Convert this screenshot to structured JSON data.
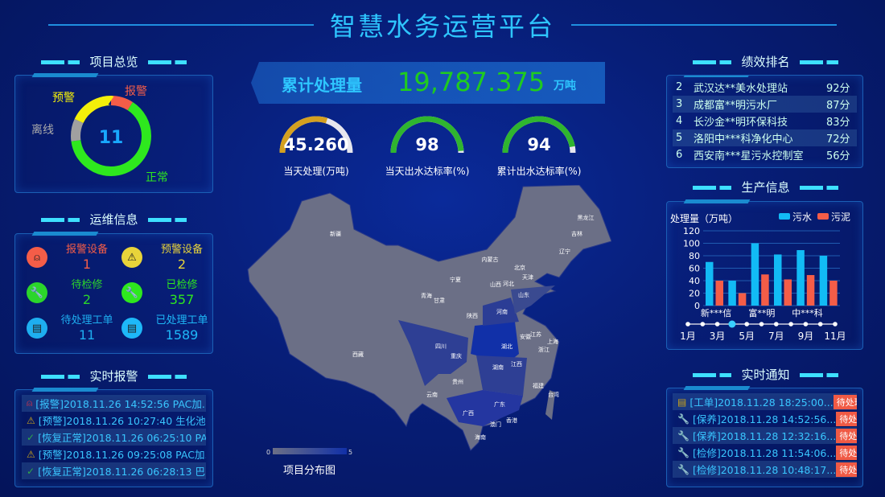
{
  "header": {
    "title": "智慧水务运营平台"
  },
  "overview": {
    "title": "项目总览",
    "total": "11",
    "colors": {
      "报警": "#f45d48",
      "正常": "#2ee81e",
      "离线": "#a0a0a0",
      "预警": "#f3ef0a"
    },
    "segments": [
      {
        "label": "报警",
        "value": 1
      },
      {
        "label": "正常",
        "value": 7
      },
      {
        "label": "离线",
        "value": 1
      },
      {
        "label": "预警",
        "value": 2
      }
    ]
  },
  "ops": {
    "title": "运维信息",
    "items": [
      {
        "label": "报警设备",
        "value": "1",
        "color": "#f45d48",
        "icon": "alarm-light-icon"
      },
      {
        "label": "预警设备",
        "value": "2",
        "color": "#e8d43a",
        "icon": "warning-light-icon"
      },
      {
        "label": "待检修",
        "value": "2",
        "color": "#2bd52b",
        "icon": "wrench-icon"
      },
      {
        "label": "已检修",
        "value": "357",
        "color": "#2ee81e",
        "icon": "wrench-icon"
      },
      {
        "label": "待处理工单",
        "value": "11",
        "color": "#1eaef0",
        "icon": "clipboard-icon"
      },
      {
        "label": "已处理工单",
        "value": "1589",
        "color": "#1eb8f8",
        "icon": "clipboard-icon"
      }
    ]
  },
  "alarms": {
    "title": "实时报警",
    "items": [
      {
        "text": "[报警]2018.11.26 14:52:56 PAC加...",
        "icon": "alarm-light-icon",
        "color": "#d0304a"
      },
      {
        "text": "[预警]2018.11.26 10:27:40 生化池 ...",
        "icon": "warning-light-icon",
        "color": "#c9a21a"
      },
      {
        "text": "[恢复正常]2018.11.26 06:25:10 PA...",
        "icon": "check-circle-icon",
        "color": "#2fa84a"
      },
      {
        "text": "[预警]2018.11.26 09:25:08 PAC加...",
        "icon": "warning-light-icon",
        "color": "#c9a21a"
      },
      {
        "text": "[恢复正常]2018.11.26 06:28:13 巴...",
        "icon": "check-circle-icon",
        "color": "#2fa84a"
      }
    ]
  },
  "total": {
    "label": "累计处理量",
    "value": "19,787.375",
    "unit": "万吨"
  },
  "gauges": [
    {
      "value": "45.260",
      "label": "当天处理(万吨)",
      "fraction": 0.6,
      "color": "#d4a020"
    },
    {
      "value": "98",
      "label": "当天出水达标率(%)",
      "fraction": 0.98,
      "color": "#2fb52f"
    },
    {
      "value": "94",
      "label": "累计出水达标率(%)",
      "fraction": 0.94,
      "color": "#2fb52f"
    }
  ],
  "map": {
    "title": "项目分布图",
    "legend_min": "0",
    "legend_max": "5",
    "provinces": [
      "新疆",
      "西藏",
      "青海",
      "甘肃",
      "宁夏",
      "内蒙古",
      "黑龙江",
      "吉林",
      "辽宁",
      "北京",
      "天津",
      "河北",
      "山西",
      "山东",
      "河南",
      "陕西",
      "四川",
      "重庆",
      "湖北",
      "安徽",
      "江苏",
      "上海",
      "浙江",
      "湖南",
      "江西",
      "贵州",
      "云南",
      "广西",
      "广东",
      "福建",
      "台湾",
      "澳门",
      "香港",
      "海南"
    ]
  },
  "ranking": {
    "title": "绩效排名",
    "items": [
      {
        "rank": "2",
        "name": "武汉达**美水处理站",
        "score": "92分"
      },
      {
        "rank": "3",
        "name": "成都富**明污水厂",
        "score": "87分"
      },
      {
        "rank": "4",
        "name": "长沙金**明环保科技",
        "score": "83分"
      },
      {
        "rank": "5",
        "name": "洛阳中***科净化中心",
        "score": "72分"
      },
      {
        "rank": "6",
        "name": "西安南***星污水控制室",
        "score": "56分"
      }
    ]
  },
  "production": {
    "title": "生产信息",
    "months": [
      "1月",
      "3月",
      "5月",
      "7月",
      "9月",
      "11月"
    ],
    "active_month_index": 3
  },
  "chart_data": {
    "type": "bar",
    "ylabel": "处理量（万吨）",
    "ylim": [
      0,
      120
    ],
    "yticks": [
      0,
      20,
      40,
      60,
      80,
      100,
      120
    ],
    "categories": [
      "新***信",
      "",
      "富**明",
      "",
      "中***科",
      ""
    ],
    "series": [
      {
        "name": "污水",
        "color": "#12bbf5",
        "values": [
          70,
          40,
          100,
          82,
          89,
          80
        ]
      },
      {
        "name": "污泥",
        "color": "#f45d48",
        "values": [
          40,
          20,
          50,
          42,
          49,
          40
        ]
      }
    ],
    "legend": "top-right",
    "grid": true
  },
  "notices": {
    "title": "实时通知",
    "items": [
      {
        "text": "[工单]2018.11.28 18:25:00...",
        "status": "待处理",
        "icon": "clipboard-icon",
        "color": "#c9a21a"
      },
      {
        "text": "[保养]2018.11.28 14:52:56...",
        "status": "待处理",
        "icon": "wrench-icon",
        "color": "#2a6fd0"
      },
      {
        "text": "[保养]2018.11.28 12:32:16...",
        "status": "待处理",
        "icon": "wrench-icon",
        "color": "#2a6fd0"
      },
      {
        "text": "[检修]2018.11.28 11:54:06...",
        "status": "待处理",
        "icon": "wrench-icon",
        "color": "#2fa84a"
      },
      {
        "text": "[检修]2018.11.28 10:48:17...",
        "status": "待处理",
        "icon": "wrench-icon",
        "color": "#2fa84a"
      }
    ]
  }
}
